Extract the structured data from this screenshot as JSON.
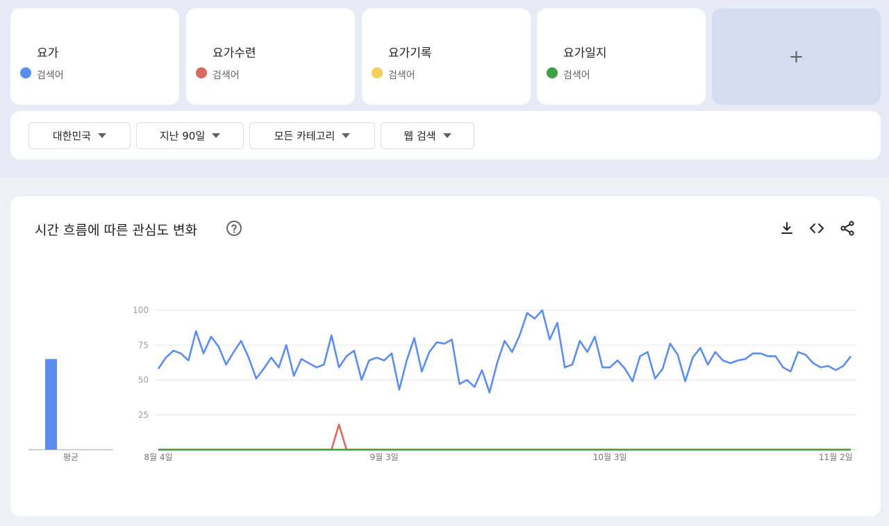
{
  "terms": [
    {
      "name": "요가",
      "type": "검색어",
      "color": "#5b8def"
    },
    {
      "name": "요가수련",
      "type": "검색어",
      "color": "#d9695f"
    },
    {
      "name": "요가기록",
      "type": "검색어",
      "color": "#f4cf5a"
    },
    {
      "name": "요가일지",
      "type": "검색어",
      "color": "#3f9f45"
    }
  ],
  "add_term_label": "+",
  "filters": {
    "region": "대한민국",
    "period": "지난 90일",
    "category": "모든 카테고리",
    "search_type": "웹 검색"
  },
  "chart": {
    "title": "시간 흐름에 따른 관심도 변화",
    "icons": [
      "help-icon",
      "download-icon",
      "embed-icon",
      "share-icon"
    ]
  },
  "chart_data": {
    "type": "line",
    "x_tick_labels": [
      "8월 4일",
      "9월 3일",
      "10월 3일",
      "11월 2일"
    ],
    "ylim": [
      0,
      100
    ],
    "y_ticks": [
      25,
      50,
      75,
      100
    ],
    "grid": true,
    "average_label": "평균",
    "averages": [
      {
        "name": "요가",
        "value": 65
      }
    ],
    "series": [
      {
        "name": "요가",
        "color": "#5b8def",
        "values": [
          58,
          66,
          71,
          69,
          64,
          85,
          69,
          81,
          74,
          61,
          70,
          78,
          66,
          51,
          58,
          66,
          59,
          75,
          53,
          65,
          62,
          59,
          61,
          82,
          59,
          67,
          71,
          50,
          64,
          66,
          64,
          69,
          43,
          64,
          80,
          56,
          70,
          77,
          76,
          79,
          47,
          50,
          45,
          57,
          41,
          62,
          78,
          70,
          82,
          98,
          94,
          100,
          79,
          91,
          59,
          61,
          78,
          70,
          81,
          59,
          59,
          64,
          58,
          49,
          67,
          70,
          51,
          58,
          76,
          68,
          49,
          66,
          73,
          61,
          70,
          64,
          62,
          64,
          65,
          69,
          69,
          67,
          67,
          59,
          56,
          70,
          68,
          62,
          59,
          60,
          57,
          60,
          67
        ]
      },
      {
        "name": "요가수련",
        "color": "#d9695f",
        "values": [
          0,
          0,
          0,
          0,
          0,
          0,
          0,
          0,
          0,
          0,
          0,
          0,
          0,
          0,
          0,
          0,
          0,
          0,
          0,
          0,
          0,
          0,
          0,
          0,
          0,
          0,
          0,
          0,
          0,
          0,
          0,
          0,
          0,
          0,
          0,
          0,
          0,
          0,
          0,
          0,
          0,
          0,
          0,
          0,
          0,
          0,
          0,
          0,
          0,
          0,
          0,
          0,
          0,
          0,
          0,
          0,
          0,
          0,
          0,
          0,
          0,
          0,
          0,
          0,
          0,
          0,
          0,
          0,
          0,
          0,
          0,
          0,
          0,
          0,
          0,
          0,
          0,
          0,
          0,
          0,
          0,
          0,
          0,
          0,
          0,
          0,
          0,
          0,
          0,
          0,
          0,
          0,
          0
        ],
        "spike": {
          "index": 24,
          "value": 18
        }
      },
      {
        "name": "요가기록",
        "color": "#f4cf5a",
        "values": [
          0,
          0,
          0,
          0,
          0,
          0,
          0,
          0,
          0,
          0,
          0,
          0,
          0,
          0,
          0,
          0,
          0,
          0,
          0,
          0,
          0,
          0,
          0,
          0,
          0,
          0,
          0,
          0,
          0,
          0,
          0,
          0,
          0,
          0,
          0,
          0,
          0,
          0,
          0,
          0,
          0,
          0,
          0,
          0,
          0,
          0,
          0,
          0,
          0,
          0,
          0,
          0,
          0,
          0,
          0,
          0,
          0,
          0,
          0,
          0,
          0,
          0,
          0,
          0,
          0,
          0,
          0,
          0,
          0,
          0,
          0,
          0,
          0,
          0,
          0,
          0,
          0,
          0,
          0,
          0,
          0,
          0,
          0,
          0,
          0,
          0,
          0,
          0,
          0,
          0,
          0,
          0,
          0
        ]
      },
      {
        "name": "요가일지",
        "color": "#3f9f45",
        "values": [
          0,
          0,
          0,
          0,
          0,
          0,
          0,
          0,
          0,
          0,
          0,
          0,
          0,
          0,
          0,
          0,
          0,
          0,
          0,
          0,
          0,
          0,
          0,
          0,
          0,
          0,
          0,
          0,
          0,
          0,
          0,
          0,
          0,
          0,
          0,
          0,
          0,
          0,
          0,
          0,
          0,
          0,
          0,
          0,
          0,
          0,
          0,
          0,
          0,
          0,
          0,
          0,
          0,
          0,
          0,
          0,
          0,
          0,
          0,
          0,
          0,
          0,
          0,
          0,
          0,
          0,
          0,
          0,
          0,
          0,
          0,
          0,
          0,
          0,
          0,
          0,
          0,
          0,
          0,
          0,
          0,
          0,
          0,
          0,
          0,
          0,
          0,
          0,
          0,
          0,
          0,
          0,
          0
        ]
      }
    ]
  }
}
